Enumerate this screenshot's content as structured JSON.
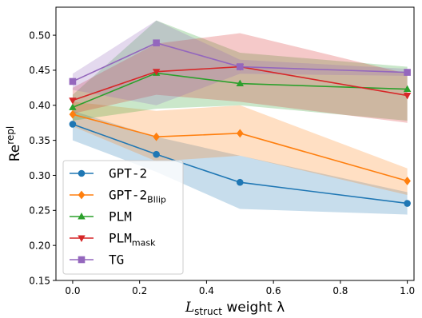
{
  "chart_data": {
    "type": "line",
    "xlabel_parts": {
      "main": "L",
      "sub": "struct",
      "rest": " weight λ"
    },
    "ylabel_parts": {
      "main": "Re",
      "sup": "repl"
    },
    "xlim": [
      -0.05,
      1.02
    ],
    "ylim": [
      0.15,
      0.54
    ],
    "x_ticks": [
      0.0,
      0.2,
      0.4,
      0.6,
      0.8,
      1.0
    ],
    "y_ticks": [
      0.15,
      0.2,
      0.25,
      0.3,
      0.35,
      0.4,
      0.45,
      0.5
    ],
    "grid": false,
    "legend_position": "lower-left",
    "x": [
      0.0,
      0.25,
      0.5,
      1.0
    ],
    "series": [
      {
        "name": "GPT-2",
        "name_sub": "",
        "color": "#1f77b4",
        "marker": "circle",
        "values": [
          0.373,
          0.33,
          0.29,
          0.26
        ],
        "band_lower": [
          0.35,
          0.305,
          0.252,
          0.244
        ],
        "band_upper": [
          0.392,
          0.355,
          0.328,
          0.276
        ]
      },
      {
        "name": "GPT-2",
        "name_sub": "Bllip",
        "color": "#ff7f0e",
        "marker": "diamond",
        "values": [
          0.387,
          0.355,
          0.36,
          0.292
        ],
        "band_lower": [
          0.37,
          0.32,
          0.328,
          0.272
        ],
        "band_upper": [
          0.405,
          0.392,
          0.4,
          0.31
        ]
      },
      {
        "name": "PLM",
        "name_sub": "",
        "color": "#2ca02c",
        "marker": "triangle-up",
        "values": [
          0.397,
          0.446,
          0.431,
          0.423
        ],
        "band_lower": [
          0.378,
          0.395,
          0.4,
          0.378
        ],
        "band_upper": [
          0.415,
          0.521,
          0.475,
          0.455
        ]
      },
      {
        "name": "PLM",
        "name_sub": "mask",
        "color": "#d62728",
        "marker": "triangle-down",
        "values": [
          0.407,
          0.448,
          0.455,
          0.414
        ],
        "band_lower": [
          0.388,
          0.415,
          0.405,
          0.375
        ],
        "band_upper": [
          0.425,
          0.488,
          0.503,
          0.445
        ]
      },
      {
        "name": "TG",
        "name_sub": "",
        "color": "#9467bd",
        "marker": "square",
        "values": [
          0.434,
          0.489,
          0.455,
          0.447
        ],
        "band_lower": [
          0.422,
          0.4,
          0.445,
          0.442
        ],
        "band_upper": [
          0.445,
          0.521,
          0.465,
          0.452
        ]
      }
    ]
  }
}
